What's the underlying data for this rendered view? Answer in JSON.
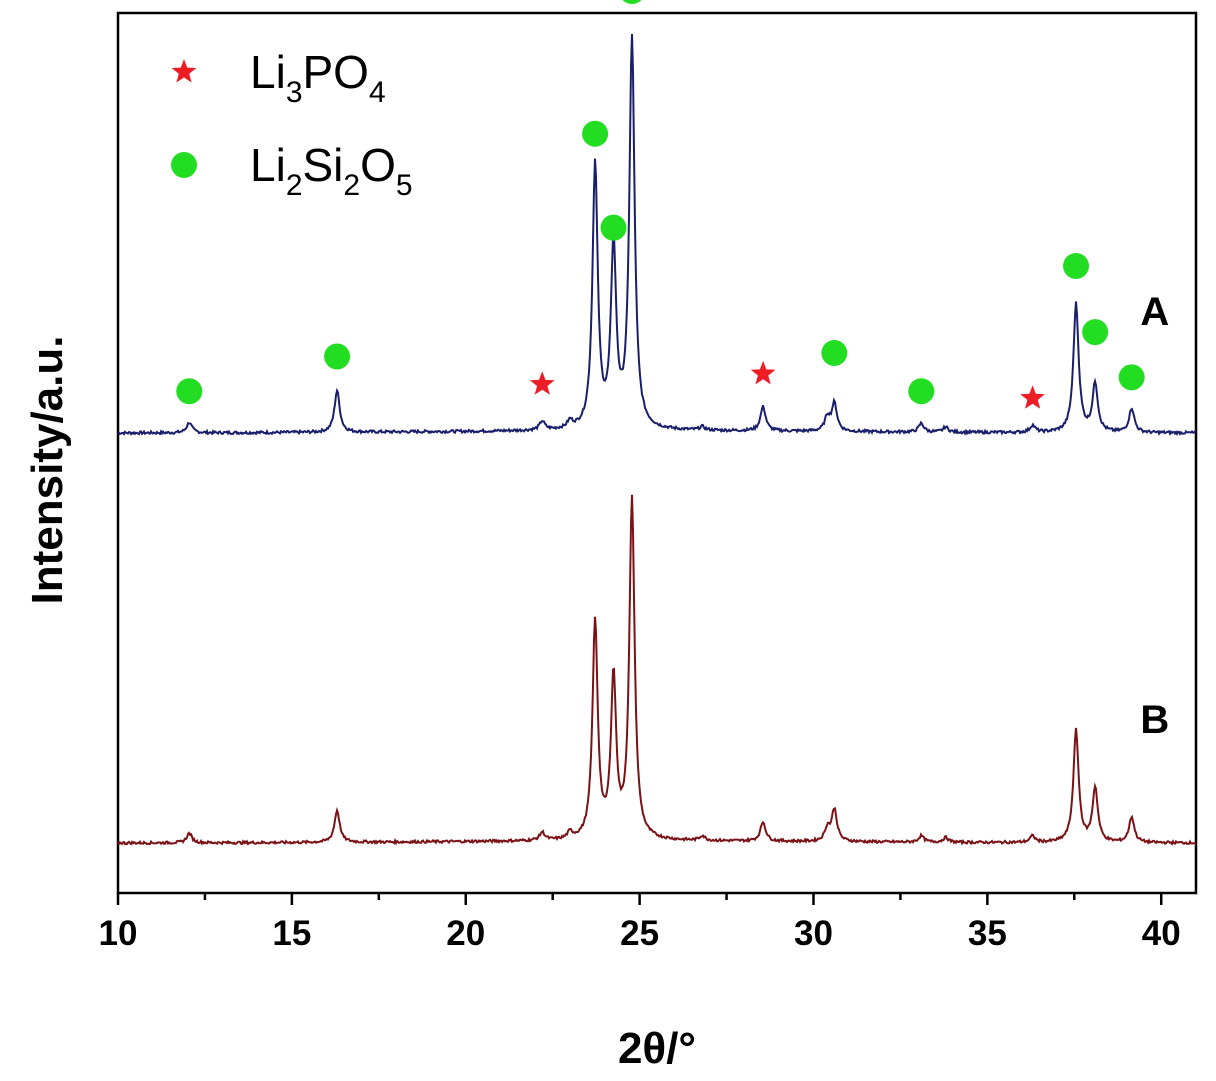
{
  "chart_data": {
    "type": "line",
    "title": "",
    "xlabel": "2θ/°",
    "ylabel": "Intensity/a.u.",
    "xlim": [
      10,
      41
    ],
    "xticks": [
      10,
      15,
      20,
      25,
      30,
      35,
      40
    ],
    "yticks": "none",
    "grid": false,
    "legend_position": "top-left",
    "colors": {
      "A": "#1a1f6b",
      "B": "#7a1216",
      "star": "#ee1c25",
      "circle": "#22dd22"
    },
    "legend": [
      {
        "marker": "star",
        "parts": [
          [
            "Li",
            ""
          ],
          [
            "3",
            "sub"
          ],
          [
            "PO",
            ""
          ],
          [
            "4",
            "sub"
          ]
        ]
      },
      {
        "marker": "circle",
        "parts": [
          [
            "Li",
            ""
          ],
          [
            "2",
            "sub"
          ],
          [
            "Si",
            ""
          ],
          [
            "2",
            "sub"
          ],
          [
            "O",
            ""
          ],
          [
            "5",
            "sub"
          ]
        ]
      }
    ],
    "series": [
      {
        "name": "A",
        "baseline": 0,
        "peaks": [
          [
            12.05,
            0.03
          ],
          [
            16.3,
            0.12
          ],
          [
            22.2,
            0.025
          ],
          [
            23.0,
            0.02
          ],
          [
            23.72,
            0.76
          ],
          [
            24.25,
            0.52
          ],
          [
            24.78,
            1.12
          ],
          [
            26.8,
            0.01
          ],
          [
            28.55,
            0.07
          ],
          [
            30.4,
            0.04
          ],
          [
            30.6,
            0.08
          ],
          [
            33.1,
            0.025
          ],
          [
            33.8,
            0.015
          ],
          [
            36.3,
            0.02
          ],
          [
            37.55,
            0.37
          ],
          [
            38.1,
            0.14
          ],
          [
            39.15,
            0.07
          ]
        ]
      },
      {
        "name": "B",
        "baseline": 0,
        "peaks": [
          [
            12.05,
            0.03
          ],
          [
            16.3,
            0.1
          ],
          [
            22.2,
            0.025
          ],
          [
            23.0,
            0.02
          ],
          [
            23.72,
            0.68
          ],
          [
            24.25,
            0.5
          ],
          [
            24.78,
            1.06
          ],
          [
            26.8,
            0.015
          ],
          [
            28.55,
            0.06
          ],
          [
            30.4,
            0.04
          ],
          [
            30.6,
            0.1
          ],
          [
            33.1,
            0.02
          ],
          [
            33.8,
            0.015
          ],
          [
            36.3,
            0.02
          ],
          [
            37.55,
            0.35
          ],
          [
            38.1,
            0.17
          ],
          [
            39.15,
            0.08
          ]
        ]
      }
    ],
    "markers": [
      {
        "type": "circle",
        "x": 12.05,
        "y": 0.12
      },
      {
        "type": "circle",
        "x": 16.3,
        "y": 0.22
      },
      {
        "type": "star",
        "x": 22.2,
        "y": 0.14
      },
      {
        "type": "circle",
        "x": 23.72,
        "y": 0.86
      },
      {
        "type": "circle",
        "x": 24.25,
        "y": 0.59
      },
      {
        "type": "circle",
        "x": 24.78,
        "y": 1.27
      },
      {
        "type": "star",
        "x": 28.55,
        "y": 0.17
      },
      {
        "type": "circle",
        "x": 30.6,
        "y": 0.23
      },
      {
        "type": "circle",
        "x": 33.1,
        "y": 0.12
      },
      {
        "type": "star",
        "x": 36.3,
        "y": 0.1
      },
      {
        "type": "circle",
        "x": 37.55,
        "y": 0.48
      },
      {
        "type": "circle",
        "x": 38.1,
        "y": 0.29
      },
      {
        "type": "circle",
        "x": 39.15,
        "y": 0.16
      }
    ]
  }
}
